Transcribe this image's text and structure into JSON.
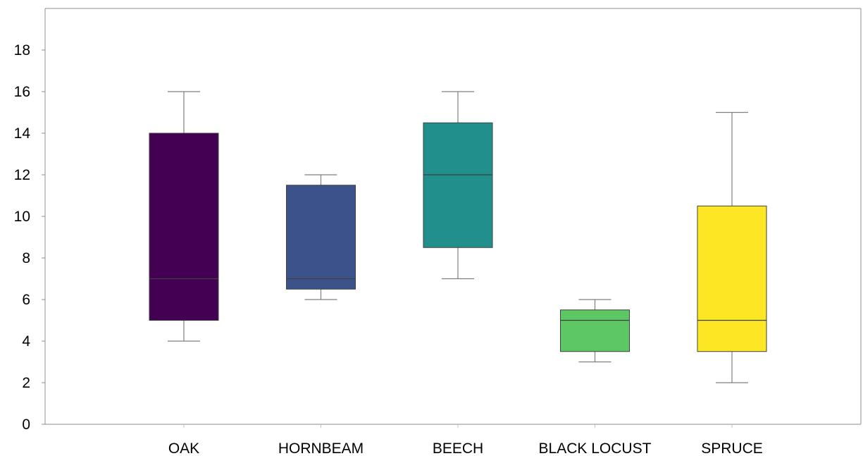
{
  "chart_data": {
    "type": "boxplot",
    "title": "",
    "xlabel": "",
    "ylabel": "",
    "ylim": [
      0,
      20
    ],
    "yticks": [
      0,
      2,
      4,
      6,
      8,
      10,
      12,
      14,
      16,
      18
    ],
    "grid": false,
    "legend": "none",
    "categories": [
      "OAK",
      "HORNBEAM",
      "BEECH",
      "BLACK LOCUST",
      "SPRUCE"
    ],
    "boxes": [
      {
        "category": "OAK",
        "min": 4,
        "q1": 5,
        "median": 7,
        "q3": 14,
        "max": 16,
        "color": "#440154"
      },
      {
        "category": "HORNBEAM",
        "min": 6,
        "q1": 6.5,
        "median": 7,
        "q3": 11.5,
        "max": 12,
        "color": "#3B528B"
      },
      {
        "category": "BEECH",
        "min": 7,
        "q1": 8.5,
        "median": 12,
        "q3": 14.5,
        "max": 16,
        "color": "#21908C"
      },
      {
        "category": "BLACK LOCUST",
        "min": 3,
        "q1": 3.5,
        "median": 5,
        "q3": 5.5,
        "max": 6,
        "color": "#5DC863"
      },
      {
        "category": "SPRUCE",
        "min": 2,
        "q1": 3.5,
        "median": 5,
        "q3": 10.5,
        "max": 15,
        "color": "#FDE725"
      }
    ]
  }
}
